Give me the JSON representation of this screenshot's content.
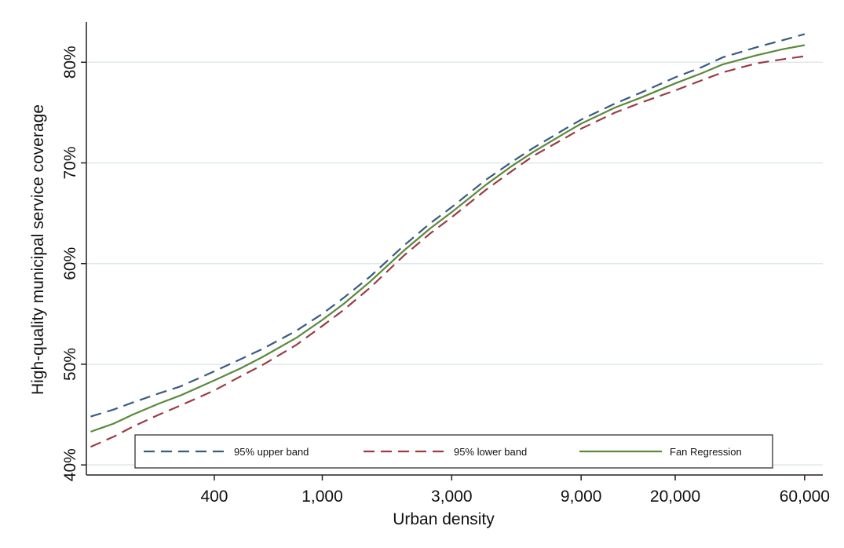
{
  "chart_data": {
    "type": "line",
    "xlabel": "Urban density",
    "ylabel": "High-quality municipal service coverage",
    "x_scale": "log",
    "x_ticks": [
      400,
      1000,
      3000,
      9000,
      20000,
      60000
    ],
    "x_tick_labels": [
      "400",
      "1,000",
      "3,000",
      "9,000",
      "20,000",
      "60,000"
    ],
    "y_ticks": [
      40,
      50,
      60,
      70,
      80
    ],
    "y_tick_labels": [
      "40%",
      "50%",
      "60%",
      "70%",
      "80%"
    ],
    "xlim": [
      135,
      70000
    ],
    "ylim": [
      39,
      84
    ],
    "grid": "horizontal",
    "legend_position": "bottom-inside",
    "x": [
      140,
      170,
      200,
      250,
      300,
      400,
      500,
      600,
      800,
      1000,
      1200,
      1500,
      2000,
      2500,
      3000,
      4000,
      5000,
      6000,
      8000,
      9000,
      12000,
      15000,
      20000,
      25000,
      30000,
      40000,
      50000,
      60000
    ],
    "series": [
      {
        "name": "95% upper band",
        "color": "#3a5a80",
        "dash": "dashed",
        "values": [
          44.8,
          45.5,
          46.2,
          47.1,
          47.8,
          49.3,
          50.5,
          51.5,
          53.3,
          55.0,
          56.6,
          58.7,
          61.8,
          64.0,
          65.6,
          68.3,
          70.1,
          71.5,
          73.5,
          74.3,
          75.9,
          77.0,
          78.5,
          79.5,
          80.5,
          81.5,
          82.2,
          82.8
        ]
      },
      {
        "name": "95% lower band",
        "color": "#9b3b46",
        "dash": "dashed",
        "values": [
          41.8,
          42.8,
          43.8,
          45.0,
          45.9,
          47.4,
          48.8,
          49.9,
          51.9,
          53.8,
          55.4,
          57.6,
          60.8,
          63.0,
          64.6,
          67.3,
          69.2,
          70.7,
          72.6,
          73.4,
          75.0,
          76.0,
          77.2,
          78.2,
          79.0,
          79.9,
          80.3,
          80.6
        ]
      },
      {
        "name": "Fan Regression",
        "color": "#5a8a3a",
        "dash": "solid",
        "values": [
          43.3,
          44.1,
          45.0,
          46.1,
          46.9,
          48.4,
          49.6,
          50.7,
          52.6,
          54.4,
          56.0,
          58.2,
          61.3,
          63.5,
          65.1,
          67.8,
          69.7,
          71.1,
          73.1,
          73.9,
          75.5,
          76.5,
          77.9,
          78.9,
          79.8,
          80.7,
          81.3,
          81.7
        ]
      }
    ]
  }
}
